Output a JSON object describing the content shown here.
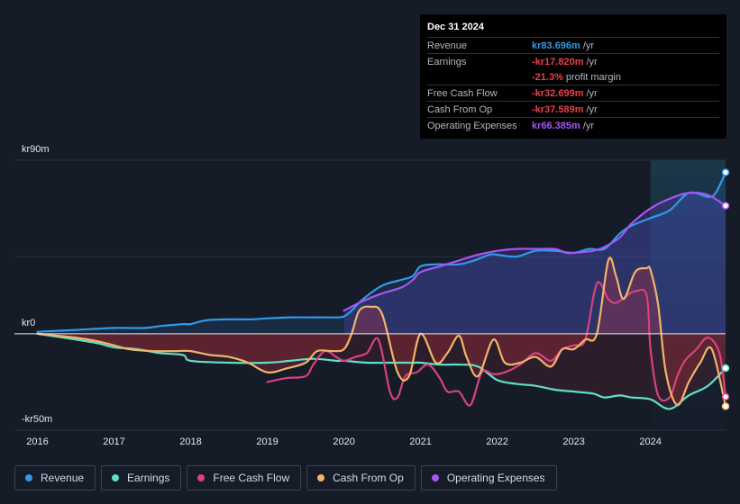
{
  "tooltip": {
    "date": "Dec 31 2024",
    "rows": [
      {
        "label": "Revenue",
        "value": "kr83.696m",
        "unit": "/yr",
        "color": "#2f9ae8"
      },
      {
        "label": "Earnings",
        "value": "-kr17.820m",
        "unit": "/yr",
        "color": "#e8414a"
      },
      {
        "label": "",
        "value": "-21.3%",
        "unit": "profit margin",
        "color": "#e8414a"
      },
      {
        "label": "Free Cash Flow",
        "value": "-kr32.699m",
        "unit": "/yr",
        "color": "#e8414a"
      },
      {
        "label": "Cash From Op",
        "value": "-kr37.589m",
        "unit": "/yr",
        "color": "#e8414a"
      },
      {
        "label": "Operating Expenses",
        "value": "kr66.385m",
        "unit": "/yr",
        "color": "#a855f7"
      }
    ]
  },
  "legend": [
    {
      "label": "Revenue",
      "color": "#2f9ae8"
    },
    {
      "label": "Earnings",
      "color": "#5fe0c8"
    },
    {
      "label": "Free Cash Flow",
      "color": "#d9417f"
    },
    {
      "label": "Cash From Op",
      "color": "#f0b46a"
    },
    {
      "label": "Operating Expenses",
      "color": "#a855f7"
    }
  ],
  "chart_data": {
    "type": "line",
    "title": "",
    "y_tick_labels": [
      "kr90m",
      "kr0",
      "-kr50m"
    ],
    "ylim": [
      -50,
      90
    ],
    "x_tick_labels": [
      "2016",
      "2017",
      "2018",
      "2019",
      "2020",
      "2021",
      "2022",
      "2023",
      "2024"
    ],
    "x_ticks": [
      2016,
      2017,
      2018,
      2019,
      2020,
      2021,
      2022,
      2023,
      2024
    ],
    "xlim": [
      2015.7,
      2024.98
    ],
    "highlight_start": 2024.0,
    "series": [
      {
        "name": "Revenue",
        "color": "#2f9ae8",
        "x": [
          2016.0,
          2016.5,
          2017.0,
          2017.4,
          2017.6,
          2017.9,
          2018.0,
          2018.2,
          2018.5,
          2018.8,
          2019.0,
          2019.3,
          2019.6,
          2019.9,
          2020.0,
          2020.1,
          2020.25,
          2020.5,
          2020.75,
          2020.9,
          2021.0,
          2021.2,
          2021.5,
          2021.7,
          2021.9,
          2022.0,
          2022.25,
          2022.5,
          2022.75,
          2023.0,
          2023.2,
          2023.4,
          2023.6,
          2023.75,
          2024.0,
          2024.25,
          2024.5,
          2024.75,
          2024.85,
          2024.98
        ],
        "values": [
          1,
          2,
          3,
          3,
          4,
          5,
          5,
          7,
          7.5,
          7.5,
          8,
          8.5,
          8.5,
          8.5,
          9,
          12,
          18,
          25,
          28,
          30,
          35,
          36,
          36,
          38,
          41,
          41,
          40,
          43,
          43,
          42,
          44,
          44,
          52,
          56,
          60,
          64,
          73,
          71,
          73,
          83.7
        ]
      },
      {
        "name": "Earnings",
        "color": "#5fe0c8",
        "x": [
          2016.0,
          2016.5,
          2016.8,
          2017.0,
          2017.3,
          2017.6,
          2017.9,
          2018.0,
          2018.5,
          2019.0,
          2019.3,
          2019.6,
          2019.9,
          2020.0,
          2020.3,
          2020.6,
          2020.9,
          2021.0,
          2021.25,
          2021.5,
          2021.75,
          2022.0,
          2022.25,
          2022.5,
          2022.75,
          2023.0,
          2023.25,
          2023.4,
          2023.6,
          2023.75,
          2024.0,
          2024.25,
          2024.5,
          2024.75,
          2024.98
        ],
        "values": [
          0,
          -3,
          -5,
          -7,
          -8,
          -10,
          -11,
          -14,
          -15,
          -15,
          -14,
          -13,
          -14,
          -14,
          -15,
          -15,
          -15,
          -15,
          -16,
          -16,
          -17,
          -24,
          -26,
          -27,
          -29,
          -30,
          -31,
          -33,
          -32,
          -33,
          -34,
          -39,
          -32,
          -27,
          -17.8
        ]
      },
      {
        "name": "Free Cash Flow",
        "color": "#d9417f",
        "x": [
          2019.0,
          2019.25,
          2019.5,
          2019.6,
          2019.75,
          2019.9,
          2020.0,
          2020.15,
          2020.3,
          2020.45,
          2020.6,
          2020.7,
          2020.8,
          2020.95,
          2021.1,
          2021.25,
          2021.35,
          2021.5,
          2021.65,
          2021.8,
          2021.95,
          2022.1,
          2022.3,
          2022.5,
          2022.7,
          2022.85,
          2023.0,
          2023.15,
          2023.3,
          2023.45,
          2023.55,
          2023.7,
          2023.8,
          2023.95,
          2024.0,
          2024.1,
          2024.25,
          2024.35,
          2024.45,
          2024.6,
          2024.75,
          2024.9,
          2024.98
        ],
        "values": [
          -25,
          -23,
          -22,
          -16,
          -9,
          -12,
          -14,
          -12,
          -10,
          -3,
          -30,
          -33,
          -22,
          -20,
          -16,
          -23,
          -30,
          -30,
          -37,
          -20,
          -21,
          -20,
          -16,
          -10,
          -14,
          -8,
          -6,
          -3,
          26,
          18,
          16,
          20,
          22,
          20,
          -8,
          -32,
          -33,
          -22,
          -14,
          -8,
          -2,
          -10,
          -32.7
        ]
      },
      {
        "name": "Cash From Op",
        "color": "#f0b46a",
        "x": [
          2016.0,
          2016.5,
          2016.8,
          2017.0,
          2017.2,
          2017.5,
          2017.8,
          2018.0,
          2018.25,
          2018.5,
          2018.75,
          2019.0,
          2019.25,
          2019.5,
          2019.65,
          2019.85,
          2020.0,
          2020.1,
          2020.2,
          2020.35,
          2020.5,
          2020.7,
          2020.85,
          2021.0,
          2021.2,
          2021.35,
          2021.5,
          2021.6,
          2021.75,
          2021.95,
          2022.1,
          2022.3,
          2022.5,
          2022.7,
          2022.85,
          2023.0,
          2023.15,
          2023.3,
          2023.45,
          2023.55,
          2023.65,
          2023.8,
          2023.95,
          2024.0,
          2024.1,
          2024.2,
          2024.35,
          2024.5,
          2024.65,
          2024.8,
          2024.98
        ],
        "values": [
          0,
          -2,
          -4,
          -6,
          -8,
          -9,
          -9,
          -9,
          -11,
          -12,
          -15,
          -20,
          -18,
          -15,
          -9,
          -9,
          -8,
          0,
          12,
          14,
          10,
          -20,
          -22,
          0,
          -15,
          -10,
          -1,
          -12,
          -22,
          -3,
          -15,
          -15,
          -12,
          -17,
          -8,
          -8,
          -3,
          0,
          38,
          30,
          18,
          32,
          34,
          33,
          15,
          -20,
          -37,
          -25,
          -15,
          -8,
          -37.6
        ]
      },
      {
        "name": "Operating Expenses",
        "color": "#a855f7",
        "x": [
          2020.0,
          2020.25,
          2020.5,
          2020.75,
          2020.9,
          2021.0,
          2021.25,
          2021.5,
          2021.75,
          2022.0,
          2022.25,
          2022.5,
          2022.75,
          2022.9,
          2023.0,
          2023.25,
          2023.4,
          2023.6,
          2023.75,
          2024.0,
          2024.25,
          2024.5,
          2024.75,
          2024.98
        ],
        "values": [
          12,
          17,
          21,
          24,
          28,
          32,
          35,
          38,
          41,
          43,
          44,
          44,
          44,
          42,
          42,
          43,
          45,
          50,
          57,
          65,
          70,
          73,
          72,
          66.4
        ]
      }
    ]
  }
}
